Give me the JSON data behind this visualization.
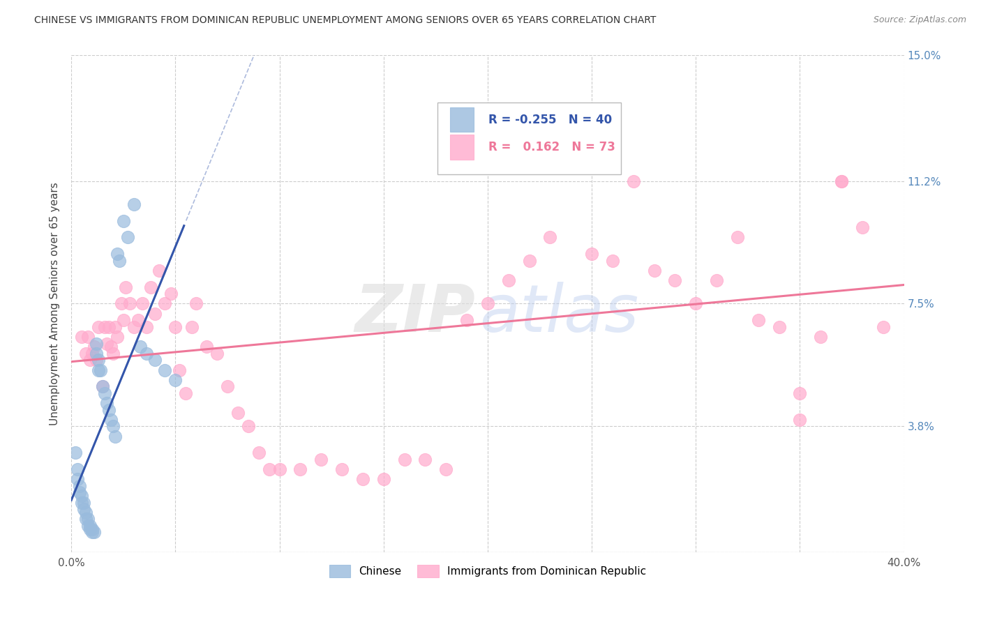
{
  "title": "CHINESE VS IMMIGRANTS FROM DOMINICAN REPUBLIC UNEMPLOYMENT AMONG SENIORS OVER 65 YEARS CORRELATION CHART",
  "source": "Source: ZipAtlas.com",
  "ylabel": "Unemployment Among Seniors over 65 years",
  "x_min": 0.0,
  "x_max": 0.4,
  "y_min": 0.0,
  "y_max": 0.15,
  "x_ticks": [
    0.0,
    0.05,
    0.1,
    0.15,
    0.2,
    0.25,
    0.3,
    0.35,
    0.4
  ],
  "y_tick_labels_right": [
    "",
    "3.8%",
    "7.5%",
    "11.2%",
    "15.0%"
  ],
  "y_tick_positions": [
    0.0,
    0.038,
    0.075,
    0.112,
    0.15
  ],
  "legend_r_chinese": "-0.255",
  "legend_n_chinese": "40",
  "legend_r_dr": "0.162",
  "legend_n_dr": "73",
  "chinese_color": "#99BBDD",
  "dr_color": "#FFAACC",
  "chinese_line_color": "#3355AA",
  "dr_line_color": "#EE7799",
  "legend_label_chinese": "Chinese",
  "legend_label_dr": "Immigrants from Dominican Republic",
  "chinese_x": [
    0.002,
    0.003,
    0.003,
    0.004,
    0.004,
    0.005,
    0.005,
    0.006,
    0.006,
    0.007,
    0.007,
    0.008,
    0.008,
    0.009,
    0.009,
    0.01,
    0.01,
    0.011,
    0.012,
    0.012,
    0.013,
    0.013,
    0.014,
    0.015,
    0.016,
    0.017,
    0.018,
    0.019,
    0.02,
    0.021,
    0.022,
    0.023,
    0.025,
    0.027,
    0.03,
    0.033,
    0.036,
    0.04,
    0.045,
    0.05
  ],
  "chinese_y": [
    0.03,
    0.025,
    0.022,
    0.02,
    0.018,
    0.017,
    0.015,
    0.015,
    0.013,
    0.012,
    0.01,
    0.01,
    0.008,
    0.008,
    0.007,
    0.007,
    0.006,
    0.006,
    0.063,
    0.06,
    0.058,
    0.055,
    0.055,
    0.05,
    0.048,
    0.045,
    0.043,
    0.04,
    0.038,
    0.035,
    0.09,
    0.088,
    0.1,
    0.095,
    0.105,
    0.062,
    0.06,
    0.058,
    0.055,
    0.052
  ],
  "dr_x": [
    0.005,
    0.007,
    0.008,
    0.009,
    0.01,
    0.011,
    0.012,
    0.013,
    0.015,
    0.016,
    0.017,
    0.018,
    0.019,
    0.02,
    0.021,
    0.022,
    0.024,
    0.025,
    0.026,
    0.028,
    0.03,
    0.032,
    0.034,
    0.036,
    0.038,
    0.04,
    0.042,
    0.045,
    0.048,
    0.05,
    0.052,
    0.055,
    0.058,
    0.06,
    0.065,
    0.07,
    0.075,
    0.08,
    0.085,
    0.09,
    0.095,
    0.1,
    0.11,
    0.12,
    0.13,
    0.14,
    0.15,
    0.16,
    0.17,
    0.18,
    0.19,
    0.2,
    0.21,
    0.22,
    0.23,
    0.24,
    0.25,
    0.26,
    0.27,
    0.28,
    0.29,
    0.3,
    0.31,
    0.32,
    0.33,
    0.34,
    0.35,
    0.36,
    0.37,
    0.38,
    0.39,
    0.35,
    0.37
  ],
  "dr_y": [
    0.065,
    0.06,
    0.065,
    0.058,
    0.06,
    0.062,
    0.058,
    0.068,
    0.05,
    0.068,
    0.063,
    0.068,
    0.062,
    0.06,
    0.068,
    0.065,
    0.075,
    0.07,
    0.08,
    0.075,
    0.068,
    0.07,
    0.075,
    0.068,
    0.08,
    0.072,
    0.085,
    0.075,
    0.078,
    0.068,
    0.055,
    0.048,
    0.068,
    0.075,
    0.062,
    0.06,
    0.05,
    0.042,
    0.038,
    0.03,
    0.025,
    0.025,
    0.025,
    0.028,
    0.025,
    0.022,
    0.022,
    0.028,
    0.028,
    0.025,
    0.07,
    0.075,
    0.082,
    0.088,
    0.095,
    0.132,
    0.09,
    0.088,
    0.112,
    0.085,
    0.082,
    0.075,
    0.082,
    0.095,
    0.07,
    0.068,
    0.048,
    0.065,
    0.112,
    0.098,
    0.068,
    0.04,
    0.112
  ]
}
